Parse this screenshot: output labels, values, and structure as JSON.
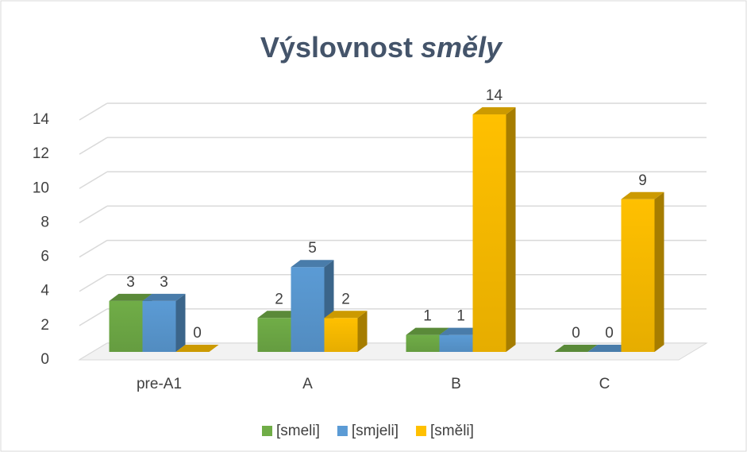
{
  "chart_data": {
    "type": "bar3d",
    "title": [
      "Výslovnost",
      "směly"
    ],
    "categories": [
      "pre-A1",
      "A",
      "B",
      "C"
    ],
    "series": [
      {
        "name": "[smeli]",
        "color": "#70ad47",
        "values": [
          3,
          2,
          1,
          0
        ]
      },
      {
        "name": "[smjeli]",
        "color": "#5b9bd5",
        "values": [
          3,
          5,
          1,
          0
        ]
      },
      {
        "name": "[směli]",
        "color": "#ffc000",
        "values": [
          0,
          2,
          14,
          9
        ]
      }
    ],
    "ylim": [
      0,
      14
    ],
    "yticks": [
      0,
      2,
      4,
      6,
      8,
      10,
      12,
      14
    ],
    "grid": true,
    "legend": "bottom"
  }
}
